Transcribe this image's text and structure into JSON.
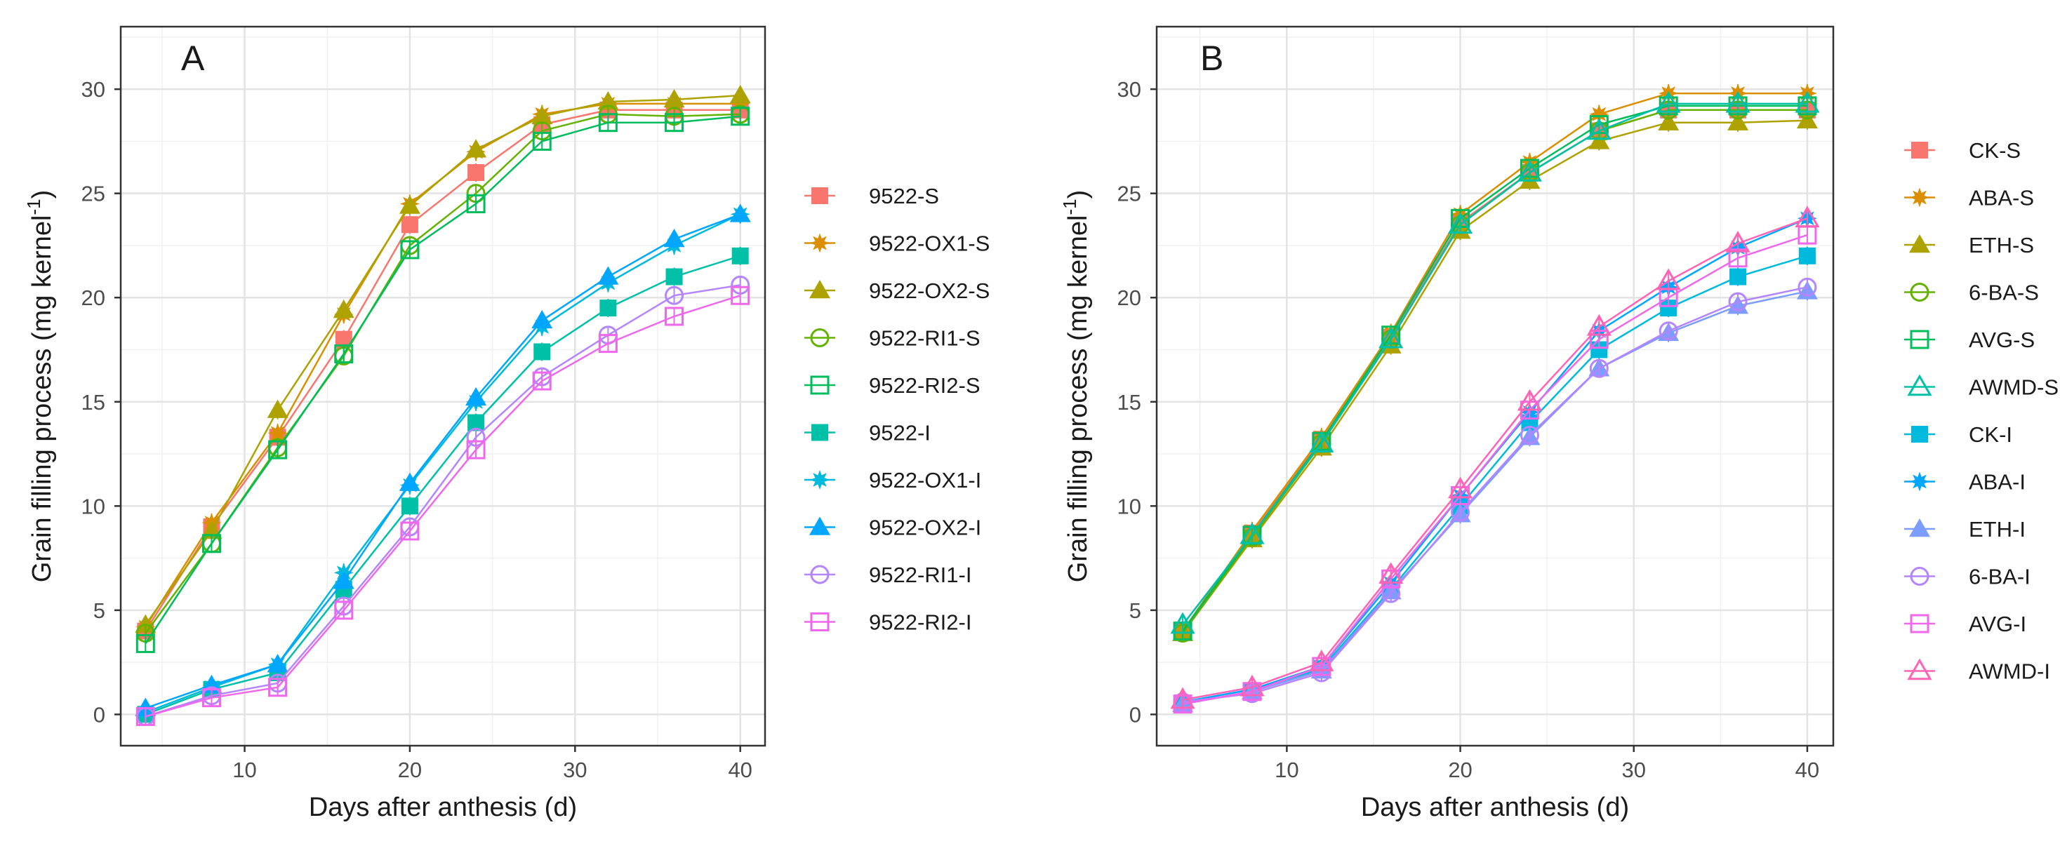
{
  "colors": {
    "9522-S": "#F8766D",
    "9522-OX1-S": "#DB8E00",
    "9522-OX2-S": "#AEA200",
    "9522-RI1-S": "#64B200",
    "9522-RI2-S": "#00BD5C",
    "9522-I": "#00C1A7",
    "9522-OX1-I": "#00BADE",
    "9522-OX2-I": "#00A6FF",
    "9522-RI1-I": "#B385FF",
    "9522-RI2-I": "#EF67EB",
    "CK-S": "#F8766D",
    "ABA-S": "#DB8E00",
    "ETH-S": "#AEA200",
    "6-BA-S": "#64B200",
    "AVG-S": "#00BD5C",
    "AWMD-S": "#00C1A7",
    "CK-I": "#00BADE",
    "ABA-I": "#00A6FF",
    "ETH-I": "#7C9CFF",
    "6-BA-I": "#B385FF",
    "AVG-I": "#EF67EB",
    "AWMD-I": "#FF63B6"
  },
  "chart_data": [
    {
      "panel": "A",
      "type": "line",
      "xlabel": "Days after anthesis (d)",
      "ylabel": "Grain filling process  (mg kernel",
      "ylabel_sup": "-1",
      "ylabel_close": ")",
      "xlim": [
        2.5,
        41.5
      ],
      "ylim": [
        -1.5,
        33
      ],
      "xticks": [
        10,
        20,
        30,
        40
      ],
      "yticks": [
        0,
        5,
        10,
        15,
        20,
        25,
        30
      ],
      "x": [
        4,
        8,
        12,
        16,
        20,
        24,
        28,
        32,
        36,
        40
      ],
      "series": [
        {
          "name": "9522-S",
          "marker": "square-filled",
          "values": [
            4.0,
            9.0,
            13.3,
            18.0,
            23.5,
            26.0,
            28.3,
            29.0,
            29.0,
            29.0
          ]
        },
        {
          "name": "9522-OX1-S",
          "marker": "star-filled",
          "values": [
            4.2,
            9.2,
            13.5,
            19.2,
            24.5,
            27.0,
            28.8,
            29.3,
            29.3,
            29.3
          ]
        },
        {
          "name": "9522-OX2-S",
          "marker": "triangle-filled",
          "values": [
            4.3,
            8.8,
            14.6,
            19.4,
            24.4,
            27.1,
            28.7,
            29.4,
            29.5,
            29.7
          ]
        },
        {
          "name": "9522-RI1-S",
          "marker": "circle-open",
          "values": [
            3.9,
            8.2,
            12.8,
            17.2,
            22.5,
            25.0,
            28.0,
            28.8,
            28.7,
            28.8
          ]
        },
        {
          "name": "9522-RI2-S",
          "marker": "square-open",
          "values": [
            3.4,
            8.2,
            12.7,
            17.3,
            22.3,
            24.5,
            27.5,
            28.4,
            28.4,
            28.7
          ]
        },
        {
          "name": "9522-I",
          "marker": "square-filled",
          "values": [
            0.0,
            1.2,
            2.0,
            6.0,
            10.0,
            14.0,
            17.4,
            19.5,
            21.0,
            22.0
          ]
        },
        {
          "name": "9522-OX1-I",
          "marker": "star-filled",
          "values": [
            0.1,
            1.3,
            2.4,
            6.8,
            11.0,
            15.0,
            18.6,
            20.7,
            22.5,
            24.0
          ]
        },
        {
          "name": "9522-OX2-I",
          "marker": "triangle-filled",
          "values": [
            0.3,
            1.4,
            2.4,
            6.4,
            11.1,
            15.2,
            18.9,
            21.0,
            22.8,
            24.0
          ]
        },
        {
          "name": "9522-RI1-I",
          "marker": "circle-open",
          "values": [
            -0.1,
            0.9,
            1.5,
            5.2,
            9.0,
            13.3,
            16.2,
            18.2,
            20.1,
            20.6
          ]
        },
        {
          "name": "9522-RI2-I",
          "marker": "square-open",
          "values": [
            -0.1,
            0.8,
            1.3,
            5.0,
            8.8,
            12.7,
            16.0,
            17.8,
            19.1,
            20.1
          ]
        }
      ]
    },
    {
      "panel": "B",
      "type": "line",
      "xlabel": "Days after anthesis (d)",
      "ylabel": "Grain filling process  (mg kernel",
      "ylabel_sup": "-1",
      "ylabel_close": ")",
      "xlim": [
        2.5,
        41.5
      ],
      "ylim": [
        -1.5,
        33
      ],
      "xticks": [
        10,
        20,
        30,
        40
      ],
      "yticks": [
        0,
        5,
        10,
        15,
        20,
        25,
        30
      ],
      "x": [
        4,
        8,
        12,
        16,
        20,
        24,
        28,
        32,
        36,
        40
      ],
      "series": [
        {
          "name": "CK-S",
          "marker": "square-filled",
          "values": [
            4.0,
            8.7,
            13.2,
            18.1,
            23.6,
            26.0,
            28.0,
            29.0,
            29.0,
            29.0
          ]
        },
        {
          "name": "ABA-S",
          "marker": "star-filled",
          "values": [
            4.0,
            8.8,
            13.3,
            18.3,
            24.0,
            26.5,
            28.8,
            29.8,
            29.8,
            29.8
          ]
        },
        {
          "name": "ETH-S",
          "marker": "triangle-filled",
          "values": [
            3.9,
            8.4,
            12.8,
            17.7,
            23.2,
            25.6,
            27.5,
            28.4,
            28.4,
            28.5
          ]
        },
        {
          "name": "6-BA-S",
          "marker": "circle-open",
          "values": [
            3.9,
            8.5,
            13.0,
            18.0,
            23.5,
            26.0,
            28.0,
            29.0,
            29.0,
            29.0
          ]
        },
        {
          "name": "AVG-S",
          "marker": "square-open",
          "values": [
            4.0,
            8.6,
            13.1,
            18.2,
            23.8,
            26.2,
            28.3,
            29.2,
            29.2,
            29.2
          ]
        },
        {
          "name": "AWMD-S",
          "marker": "triangle-open",
          "values": [
            4.3,
            8.6,
            13.0,
            18.0,
            23.5,
            26.0,
            28.0,
            29.3,
            29.3,
            29.3
          ]
        },
        {
          "name": "CK-I",
          "marker": "square-filled",
          "values": [
            0.5,
            1.1,
            2.2,
            6.0,
            10.0,
            14.0,
            17.5,
            19.5,
            21.0,
            22.0
          ]
        },
        {
          "name": "ABA-I",
          "marker": "star-filled",
          "values": [
            0.6,
            1.2,
            2.3,
            6.3,
            10.5,
            14.5,
            18.4,
            20.5,
            22.4,
            23.8
          ]
        },
        {
          "name": "ETH-I",
          "marker": "triangle-filled",
          "values": [
            0.5,
            1.1,
            2.1,
            5.9,
            9.6,
            13.3,
            16.6,
            18.3,
            19.6,
            20.3
          ]
        },
        {
          "name": "6-BA-I",
          "marker": "circle-open",
          "values": [
            0.6,
            1.0,
            2.0,
            5.8,
            9.7,
            13.4,
            16.6,
            18.4,
            19.8,
            20.5
          ]
        },
        {
          "name": "AVG-I",
          "marker": "square-open",
          "values": [
            0.5,
            1.1,
            2.3,
            6.5,
            10.5,
            14.6,
            18.0,
            20.0,
            21.9,
            23.0
          ]
        },
        {
          "name": "AWMD-I",
          "marker": "triangle-open",
          "values": [
            0.7,
            1.3,
            2.5,
            6.7,
            10.8,
            15.0,
            18.6,
            20.8,
            22.6,
            23.8
          ]
        }
      ]
    }
  ]
}
